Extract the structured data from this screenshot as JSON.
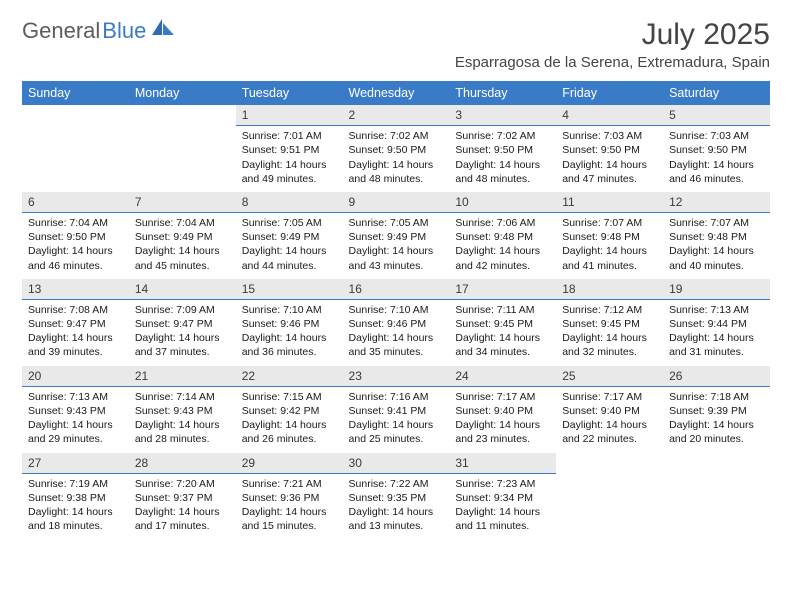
{
  "logo": {
    "text1": "General",
    "text2": "Blue"
  },
  "title": "July 2025",
  "location": "Esparragosa de la Serena, Extremadura, Spain",
  "colors": {
    "header_bg": "#3a7bc8",
    "header_text": "#ffffff",
    "daynum_bg": "#e9e9e9",
    "daynum_border": "#3a7bc8",
    "body_bg": "#ffffff",
    "text": "#1a1a1a",
    "logo_gray": "#5c5c5c",
    "logo_blue": "#3a7bc8"
  },
  "fonts": {
    "title_size": 30,
    "location_size": 15,
    "header_size": 12.5,
    "cell_size": 10.5
  },
  "day_headers": [
    "Sunday",
    "Monday",
    "Tuesday",
    "Wednesday",
    "Thursday",
    "Friday",
    "Saturday"
  ],
  "weeks": [
    [
      {
        "empty": true
      },
      {
        "empty": true
      },
      {
        "num": "1",
        "sunrise": "Sunrise: 7:01 AM",
        "sunset": "Sunset: 9:51 PM",
        "day1": "Daylight: 14 hours",
        "day2": "and 49 minutes."
      },
      {
        "num": "2",
        "sunrise": "Sunrise: 7:02 AM",
        "sunset": "Sunset: 9:50 PM",
        "day1": "Daylight: 14 hours",
        "day2": "and 48 minutes."
      },
      {
        "num": "3",
        "sunrise": "Sunrise: 7:02 AM",
        "sunset": "Sunset: 9:50 PM",
        "day1": "Daylight: 14 hours",
        "day2": "and 48 minutes."
      },
      {
        "num": "4",
        "sunrise": "Sunrise: 7:03 AM",
        "sunset": "Sunset: 9:50 PM",
        "day1": "Daylight: 14 hours",
        "day2": "and 47 minutes."
      },
      {
        "num": "5",
        "sunrise": "Sunrise: 7:03 AM",
        "sunset": "Sunset: 9:50 PM",
        "day1": "Daylight: 14 hours",
        "day2": "and 46 minutes."
      }
    ],
    [
      {
        "num": "6",
        "sunrise": "Sunrise: 7:04 AM",
        "sunset": "Sunset: 9:50 PM",
        "day1": "Daylight: 14 hours",
        "day2": "and 46 minutes."
      },
      {
        "num": "7",
        "sunrise": "Sunrise: 7:04 AM",
        "sunset": "Sunset: 9:49 PM",
        "day1": "Daylight: 14 hours",
        "day2": "and 45 minutes."
      },
      {
        "num": "8",
        "sunrise": "Sunrise: 7:05 AM",
        "sunset": "Sunset: 9:49 PM",
        "day1": "Daylight: 14 hours",
        "day2": "and 44 minutes."
      },
      {
        "num": "9",
        "sunrise": "Sunrise: 7:05 AM",
        "sunset": "Sunset: 9:49 PM",
        "day1": "Daylight: 14 hours",
        "day2": "and 43 minutes."
      },
      {
        "num": "10",
        "sunrise": "Sunrise: 7:06 AM",
        "sunset": "Sunset: 9:48 PM",
        "day1": "Daylight: 14 hours",
        "day2": "and 42 minutes."
      },
      {
        "num": "11",
        "sunrise": "Sunrise: 7:07 AM",
        "sunset": "Sunset: 9:48 PM",
        "day1": "Daylight: 14 hours",
        "day2": "and 41 minutes."
      },
      {
        "num": "12",
        "sunrise": "Sunrise: 7:07 AM",
        "sunset": "Sunset: 9:48 PM",
        "day1": "Daylight: 14 hours",
        "day2": "and 40 minutes."
      }
    ],
    [
      {
        "num": "13",
        "sunrise": "Sunrise: 7:08 AM",
        "sunset": "Sunset: 9:47 PM",
        "day1": "Daylight: 14 hours",
        "day2": "and 39 minutes."
      },
      {
        "num": "14",
        "sunrise": "Sunrise: 7:09 AM",
        "sunset": "Sunset: 9:47 PM",
        "day1": "Daylight: 14 hours",
        "day2": "and 37 minutes."
      },
      {
        "num": "15",
        "sunrise": "Sunrise: 7:10 AM",
        "sunset": "Sunset: 9:46 PM",
        "day1": "Daylight: 14 hours",
        "day2": "and 36 minutes."
      },
      {
        "num": "16",
        "sunrise": "Sunrise: 7:10 AM",
        "sunset": "Sunset: 9:46 PM",
        "day1": "Daylight: 14 hours",
        "day2": "and 35 minutes."
      },
      {
        "num": "17",
        "sunrise": "Sunrise: 7:11 AM",
        "sunset": "Sunset: 9:45 PM",
        "day1": "Daylight: 14 hours",
        "day2": "and 34 minutes."
      },
      {
        "num": "18",
        "sunrise": "Sunrise: 7:12 AM",
        "sunset": "Sunset: 9:45 PM",
        "day1": "Daylight: 14 hours",
        "day2": "and 32 minutes."
      },
      {
        "num": "19",
        "sunrise": "Sunrise: 7:13 AM",
        "sunset": "Sunset: 9:44 PM",
        "day1": "Daylight: 14 hours",
        "day2": "and 31 minutes."
      }
    ],
    [
      {
        "num": "20",
        "sunrise": "Sunrise: 7:13 AM",
        "sunset": "Sunset: 9:43 PM",
        "day1": "Daylight: 14 hours",
        "day2": "and 29 minutes."
      },
      {
        "num": "21",
        "sunrise": "Sunrise: 7:14 AM",
        "sunset": "Sunset: 9:43 PM",
        "day1": "Daylight: 14 hours",
        "day2": "and 28 minutes."
      },
      {
        "num": "22",
        "sunrise": "Sunrise: 7:15 AM",
        "sunset": "Sunset: 9:42 PM",
        "day1": "Daylight: 14 hours",
        "day2": "and 26 minutes."
      },
      {
        "num": "23",
        "sunrise": "Sunrise: 7:16 AM",
        "sunset": "Sunset: 9:41 PM",
        "day1": "Daylight: 14 hours",
        "day2": "and 25 minutes."
      },
      {
        "num": "24",
        "sunrise": "Sunrise: 7:17 AM",
        "sunset": "Sunset: 9:40 PM",
        "day1": "Daylight: 14 hours",
        "day2": "and 23 minutes."
      },
      {
        "num": "25",
        "sunrise": "Sunrise: 7:17 AM",
        "sunset": "Sunset: 9:40 PM",
        "day1": "Daylight: 14 hours",
        "day2": "and 22 minutes."
      },
      {
        "num": "26",
        "sunrise": "Sunrise: 7:18 AM",
        "sunset": "Sunset: 9:39 PM",
        "day1": "Daylight: 14 hours",
        "day2": "and 20 minutes."
      }
    ],
    [
      {
        "num": "27",
        "sunrise": "Sunrise: 7:19 AM",
        "sunset": "Sunset: 9:38 PM",
        "day1": "Daylight: 14 hours",
        "day2": "and 18 minutes."
      },
      {
        "num": "28",
        "sunrise": "Sunrise: 7:20 AM",
        "sunset": "Sunset: 9:37 PM",
        "day1": "Daylight: 14 hours",
        "day2": "and 17 minutes."
      },
      {
        "num": "29",
        "sunrise": "Sunrise: 7:21 AM",
        "sunset": "Sunset: 9:36 PM",
        "day1": "Daylight: 14 hours",
        "day2": "and 15 minutes."
      },
      {
        "num": "30",
        "sunrise": "Sunrise: 7:22 AM",
        "sunset": "Sunset: 9:35 PM",
        "day1": "Daylight: 14 hours",
        "day2": "and 13 minutes."
      },
      {
        "num": "31",
        "sunrise": "Sunrise: 7:23 AM",
        "sunset": "Sunset: 9:34 PM",
        "day1": "Daylight: 14 hours",
        "day2": "and 11 minutes."
      },
      {
        "empty": true
      },
      {
        "empty": true
      }
    ]
  ]
}
